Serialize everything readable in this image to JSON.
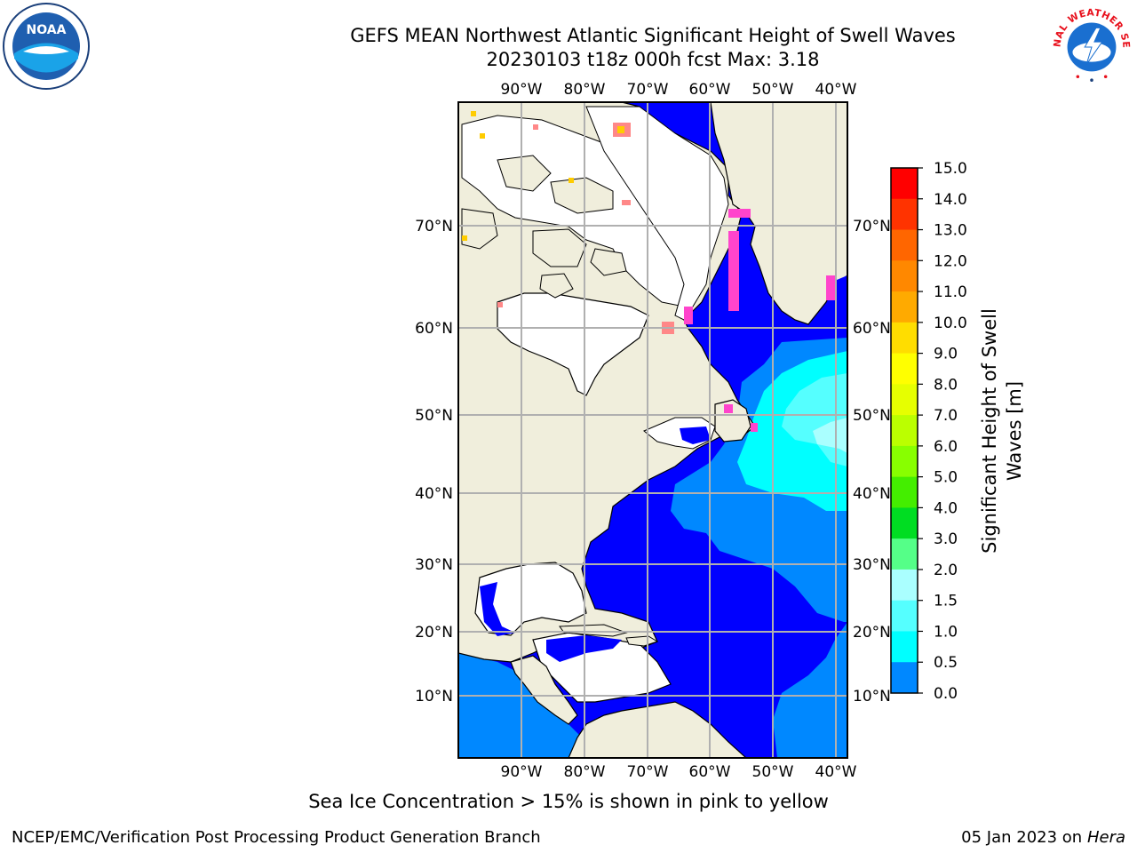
{
  "title": {
    "line1": "GEFS MEAN Northwest Atlantic Significant Height of Swell Waves",
    "line2": "20230103 t18z 000h fcst   Max: 3.18"
  },
  "logos": {
    "left": "noaa-logo",
    "right": "nws-logo",
    "noaa_text": "NOAA",
    "nws_text": "NATIONAL WEATHER SERVICE"
  },
  "map": {
    "projection": "mercator",
    "lon_range": [
      -100,
      -38
    ],
    "lat_range": [
      2,
      82
    ],
    "lon_ticks": [
      "90°W",
      "80°W",
      "70°W",
      "60°W",
      "50°W",
      "40°W"
    ],
    "lat_ticks": [
      "70°N",
      "60°N",
      "50°N",
      "40°N",
      "30°N",
      "20°N",
      "10°N"
    ],
    "grid": true,
    "land_color": "#f0eedc",
    "ice_note_colors": [
      "#ff44cc",
      "#ff8888",
      "#ffcc00"
    ]
  },
  "colorbar": {
    "label": "Significant Height of Swell Waves [m]",
    "levels": [
      "15.0",
      "14.0",
      "13.0",
      "12.0",
      "11.0",
      "10.0",
      "9.0",
      "8.0",
      "7.0",
      "6.0",
      "5.0",
      "4.0",
      "3.0",
      "2.0",
      "1.5",
      "1.0",
      "0.5",
      "0.0"
    ],
    "colors": [
      "#ff0000",
      "#ff3300",
      "#ff6600",
      "#ff8800",
      "#ffaa00",
      "#ffdd00",
      "#ffff00",
      "#e6ff00",
      "#bbff00",
      "#88ff00",
      "#44ee00",
      "#00dd22",
      "#55ff88",
      "#aaffff",
      "#55ffff",
      "#00ffff",
      "#0088ff",
      "#0000ff"
    ]
  },
  "footer": {
    "note": "Sea Ice Concentration > 15% is shown in pink to yellow",
    "credit_left": "NCEP/EMC/Verification Post Processing Product Generation Branch",
    "credit_right_prefix": "05 Jan 2023 on ",
    "credit_right_host": "Hera"
  }
}
